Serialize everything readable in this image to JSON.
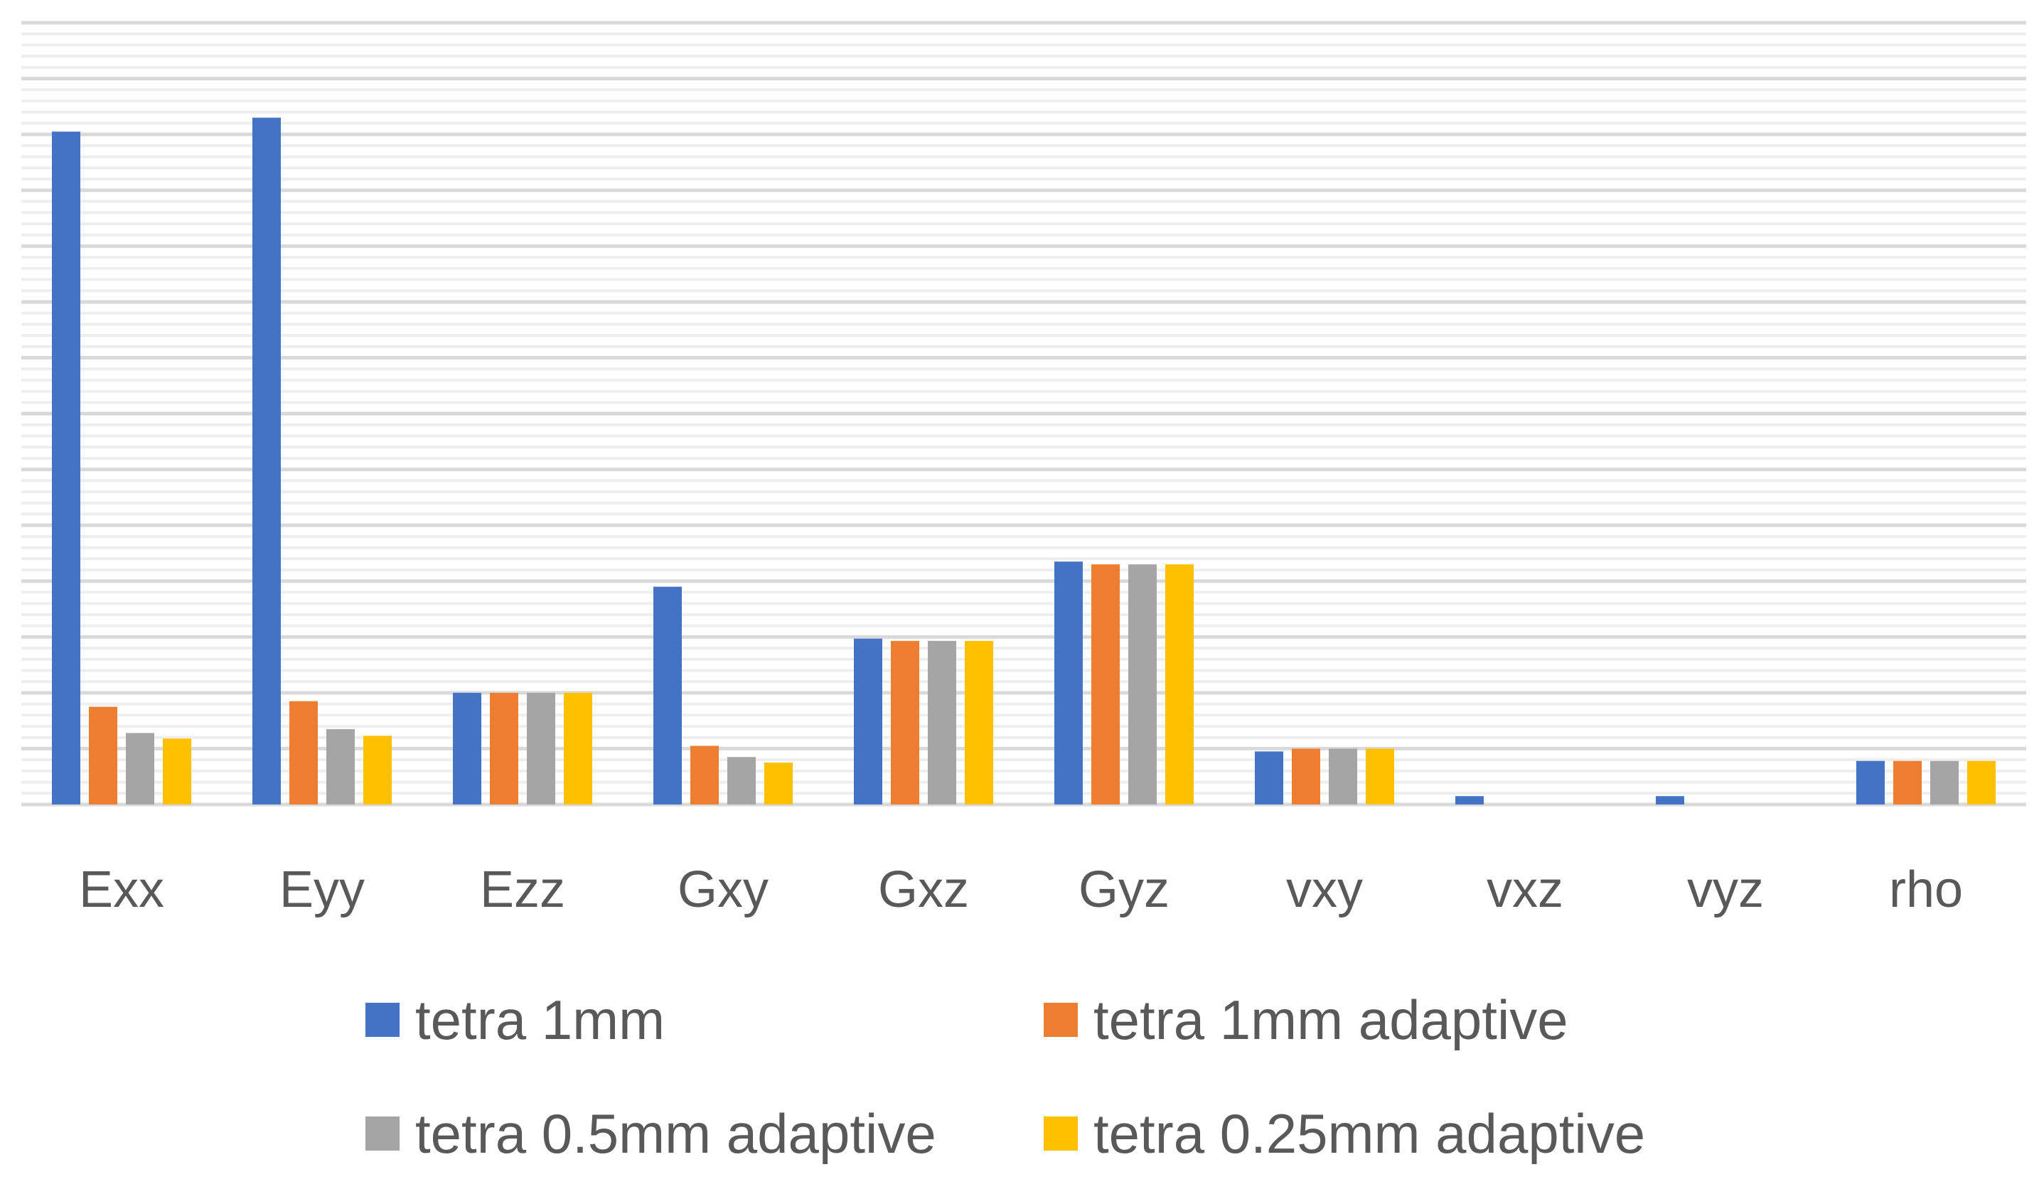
{
  "chart_data": {
    "type": "bar",
    "title": "",
    "xlabel": "",
    "ylabel": "",
    "grid": true,
    "legend_position": "bottom",
    "ylim": [
      0,
      140
    ],
    "categories": [
      "Exx",
      "Eyy",
      "Ezz",
      "Gxy",
      "Gxz",
      "Gyz",
      "vxy",
      "vxz",
      "vyz",
      "rho"
    ],
    "series": [
      {
        "name": "tetra 1mm",
        "color": "#4472C4",
        "values": [
          120.5,
          123.0,
          20.0,
          39.0,
          29.7,
          43.5,
          9.5,
          1.5,
          1.5,
          7.8
        ]
      },
      {
        "name": "tetra 1mm adaptive",
        "color": "#ED7D31",
        "values": [
          17.5,
          18.5,
          20.0,
          10.5,
          29.3,
          43.0,
          10.0,
          0,
          0,
          7.8
        ]
      },
      {
        "name": "tetra 0.5mm adaptive",
        "color": "#A5A5A5",
        "values": [
          12.8,
          13.5,
          20.0,
          8.5,
          29.3,
          43.0,
          10.0,
          0,
          0,
          7.8
        ]
      },
      {
        "name": "tetra 0.25mm adaptive",
        "color": "#FFC000",
        "values": [
          11.8,
          12.3,
          20.0,
          7.5,
          29.3,
          43.0,
          10.0,
          0,
          0,
          7.8
        ]
      }
    ]
  }
}
